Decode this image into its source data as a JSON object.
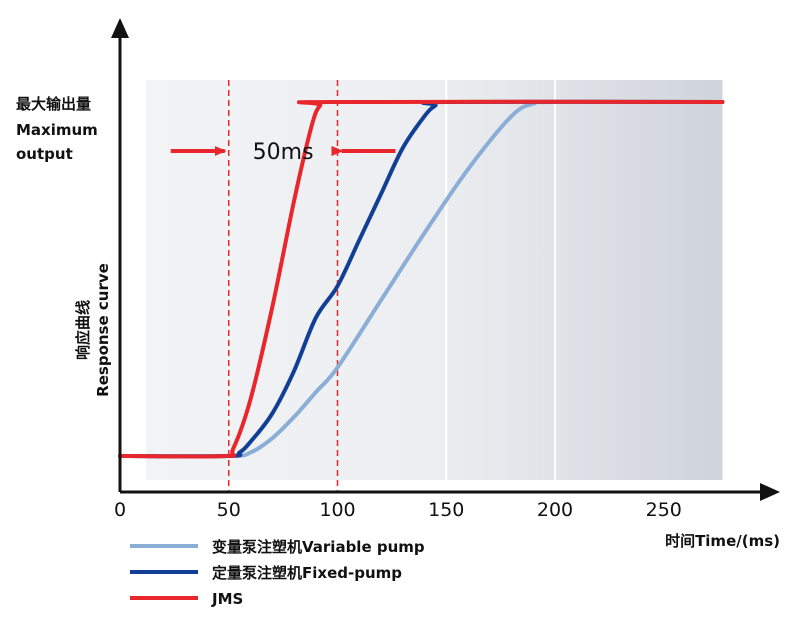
{
  "chart_data": {
    "type": "line",
    "xlabel": "时间Time/(ms)",
    "ylabel": {
      "zh": "响应曲线",
      "en": "Response curve"
    },
    "y_max_label": [
      "最大输出量",
      "Maximum",
      "output"
    ],
    "xlim": [
      0,
      280
    ],
    "x_ticks": [
      0,
      50,
      100,
      150,
      200,
      250
    ],
    "x_tick_labels": [
      "0",
      "50",
      "100",
      "150",
      "200",
      "250"
    ],
    "ylim": [
      0,
      1
    ],
    "plot_region_x": [
      12,
      277
    ],
    "vertical_markers": [
      50,
      100
    ],
    "white_gridlines": [
      150,
      200
    ],
    "annotation": "50ms",
    "series": [
      {
        "name": "变量泵注塑机Variable pump",
        "color": "#8aaed6",
        "points": [
          [
            0,
            0
          ],
          [
            50,
            0
          ],
          [
            60,
            0.01
          ],
          [
            70,
            0.05
          ],
          [
            80,
            0.11
          ],
          [
            90,
            0.18
          ],
          [
            100,
            0.25
          ],
          [
            120,
            0.44
          ],
          [
            140,
            0.63
          ],
          [
            160,
            0.81
          ],
          [
            180,
            0.96
          ],
          [
            190,
            0.995
          ],
          [
            200,
            1
          ],
          [
            277,
            1
          ]
        ]
      },
      {
        "name": "定量泵注塑机Fixed-pump",
        "color": "#123f96",
        "points": [
          [
            0,
            0
          ],
          [
            50,
            0
          ],
          [
            55,
            0.01
          ],
          [
            60,
            0.04
          ],
          [
            70,
            0.12
          ],
          [
            80,
            0.24
          ],
          [
            90,
            0.39
          ],
          [
            100,
            0.48
          ],
          [
            110,
            0.61
          ],
          [
            120,
            0.74
          ],
          [
            130,
            0.87
          ],
          [
            140,
            0.96
          ],
          [
            145,
            0.99
          ],
          [
            150,
            1
          ],
          [
            277,
            1
          ]
        ]
      },
      {
        "name": "JMS",
        "color": "#e8262b",
        "points": [
          [
            0,
            0
          ],
          [
            48,
            0
          ],
          [
            52,
            0.02
          ],
          [
            60,
            0.16
          ],
          [
            70,
            0.42
          ],
          [
            80,
            0.72
          ],
          [
            88,
            0.93
          ],
          [
            92,
            0.99
          ],
          [
            97,
            1
          ],
          [
            277,
            1
          ]
        ]
      }
    ],
    "grid": false,
    "legend_position": "bottom-left"
  }
}
